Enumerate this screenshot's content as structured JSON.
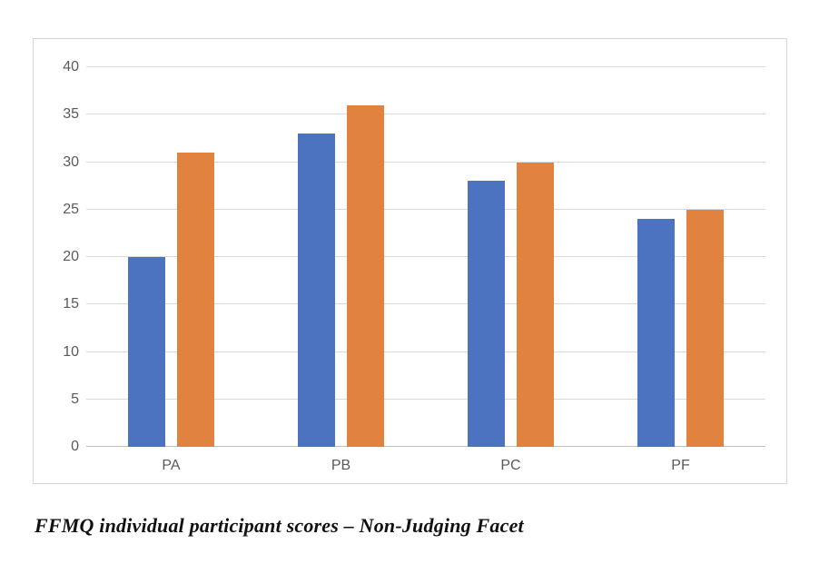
{
  "caption": "FFMQ individual participant scores – Non-Judging Facet",
  "colors": {
    "series_blue": "#4C73BF",
    "series_orange": "#E2823F",
    "gridline": "#D9D9D9",
    "axis_baseline": "#BFBFBF",
    "axis_text": "#595959",
    "chart_border": "#D7D7D7"
  },
  "chart_data": {
    "type": "bar",
    "title": "",
    "xlabel": "",
    "ylabel": "",
    "categories": [
      "PA",
      "PB",
      "PC",
      "PF"
    ],
    "series": [
      {
        "name": "blue",
        "color": "#4C73BF",
        "values": [
          20,
          33,
          28,
          24
        ]
      },
      {
        "name": "orange",
        "color": "#E2823F",
        "values": [
          31,
          36,
          30,
          25
        ]
      }
    ],
    "ylim": [
      0,
      40
    ],
    "yticks": [
      0,
      5,
      10,
      15,
      20,
      25,
      30,
      35,
      40
    ],
    "grid": true,
    "legend": false,
    "caption_below": "FFMQ individual participant scores – Non-Judging Facet"
  }
}
